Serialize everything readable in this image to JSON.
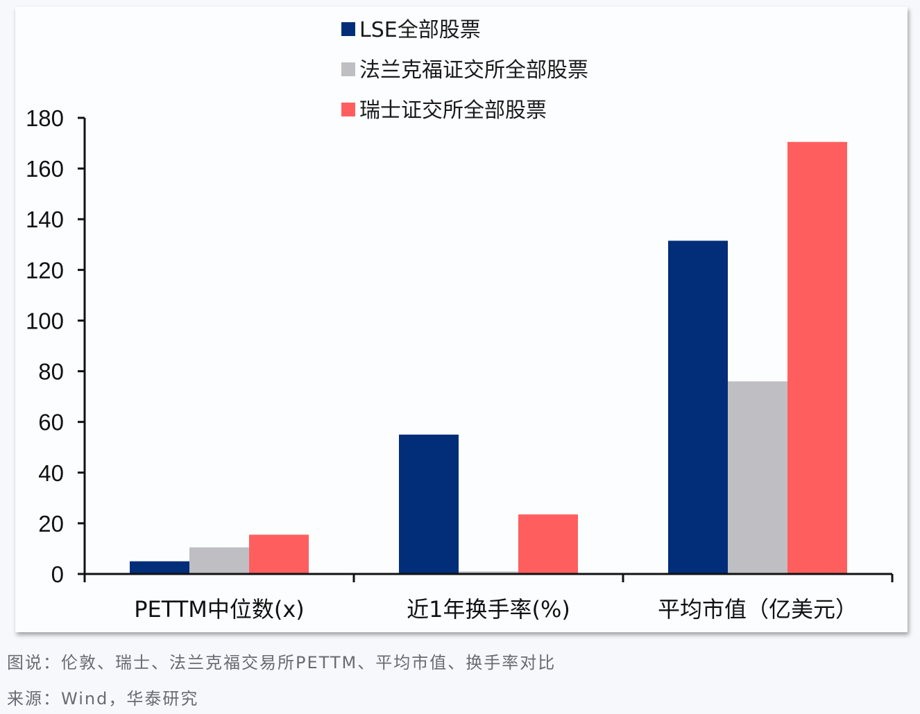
{
  "chart_data": {
    "type": "bar",
    "title": "",
    "xlabel": "",
    "ylabel": "",
    "ylim": [
      0,
      180
    ],
    "yticks": [
      0,
      20,
      40,
      60,
      80,
      100,
      120,
      140,
      160,
      180
    ],
    "grid": false,
    "legend_position": "top-center",
    "categories": [
      "PETTM中位数(x)",
      "近1年换手率(%)",
      "平均市值（亿美元）"
    ],
    "series": [
      {
        "name": "LSE全部股票",
        "color": "#012d79",
        "values": [
          5,
          55,
          131.5
        ]
      },
      {
        "name": "法兰克福证交所全部股票",
        "color": "#bfbfc3",
        "values": [
          10.5,
          1,
          76
        ]
      },
      {
        "name": "瑞士证交所全部股票",
        "color": "#fe5f5e",
        "values": [
          15.5,
          23.5,
          170.5
        ]
      }
    ]
  },
  "caption": {
    "figure_note": "图说：伦敦、瑞士、法兰克福交易所PETTM、平均市值、换手率对比",
    "source": "来源：Wind，华泰研究"
  }
}
